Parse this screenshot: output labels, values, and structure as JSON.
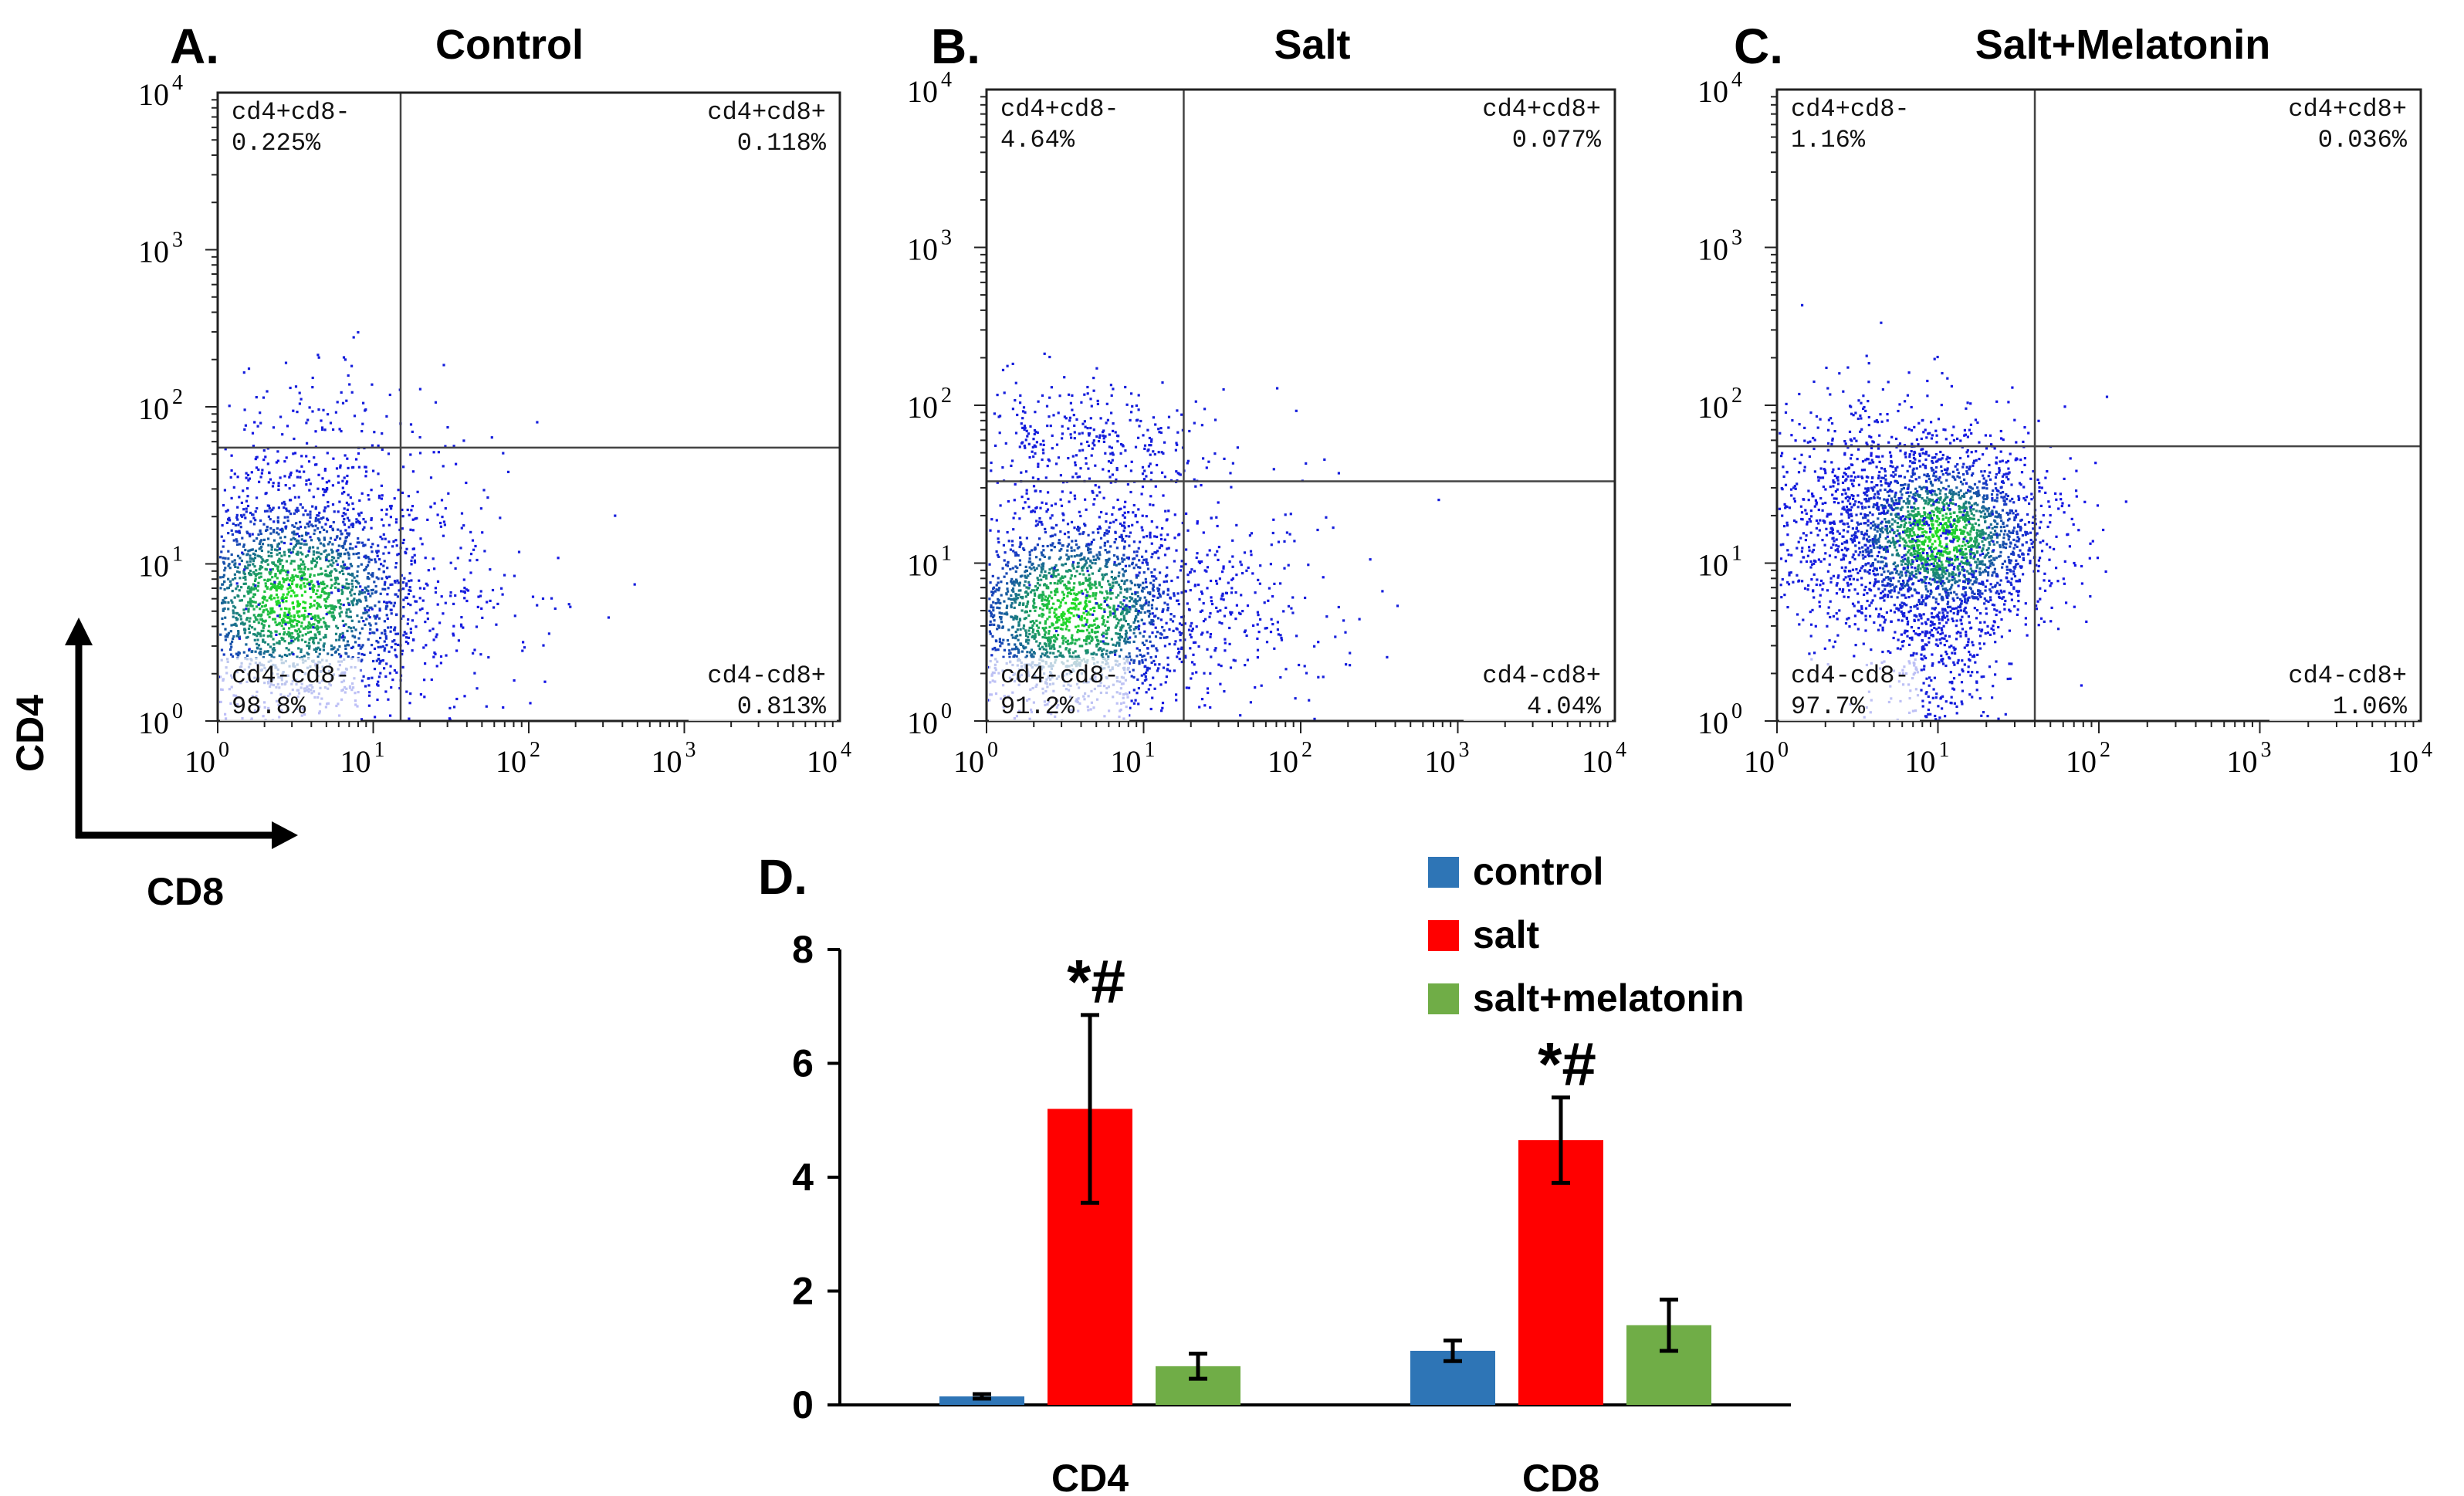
{
  "figure": {
    "axis_label_y": "CD4",
    "axis_label_x": "CD8",
    "colors": {
      "dot_low": "#1414e6",
      "dot_high": "#20e020",
      "bar_control": "#2e75b6",
      "bar_salt": "#ff0000",
      "bar_salt_melatonin": "#70ad47"
    }
  },
  "chart_data": [
    {
      "type": "scatter",
      "panel": "A.",
      "title": "Control",
      "xscale": "log",
      "yscale": "log",
      "xlim": [
        1,
        10000
      ],
      "ylim": [
        1,
        10000
      ],
      "x_ticks": [
        {
          "base": "10",
          "exp": "0"
        },
        {
          "base": "10",
          "exp": "1"
        },
        {
          "base": "10",
          "exp": "2"
        },
        {
          "base": "10",
          "exp": "3"
        },
        {
          "base": "10",
          "exp": "4"
        }
      ],
      "y_ticks": [
        {
          "base": "10",
          "exp": "0"
        },
        {
          "base": "10",
          "exp": "1"
        },
        {
          "base": "10",
          "exp": "2"
        },
        {
          "base": "10",
          "exp": "3"
        },
        {
          "base": "10",
          "exp": "4"
        }
      ],
      "gate": {
        "x": 15,
        "y": 55
      },
      "quadrants": [
        {
          "name": "cd4+cd8-",
          "pct": "0.225%",
          "pos": "top-left"
        },
        {
          "name": "cd4+cd8+",
          "pct": "0.118%",
          "pos": "top-right"
        },
        {
          "name": "cd4-cd8-",
          "pct": "98.8%",
          "pos": "bottom-left"
        },
        {
          "name": "cd4-cd8+",
          "pct": "0.813%",
          "pos": "bottom-right"
        }
      ],
      "populations": [
        {
          "cx": 3,
          "cy": 6,
          "sx": 0.45,
          "sy": 0.38,
          "n": 2400
        },
        {
          "cx": 15,
          "cy": 6,
          "sx": 0.55,
          "sy": 0.3,
          "n": 180
        },
        {
          "cx": 4,
          "cy": 40,
          "sx": 0.5,
          "sy": 0.35,
          "n": 260
        }
      ]
    },
    {
      "type": "scatter",
      "panel": "B.",
      "title": "Salt",
      "xscale": "log",
      "yscale": "log",
      "xlim": [
        1,
        10000
      ],
      "ylim": [
        1,
        10000
      ],
      "x_ticks": [
        {
          "base": "10",
          "exp": "0"
        },
        {
          "base": "10",
          "exp": "1"
        },
        {
          "base": "10",
          "exp": "2"
        },
        {
          "base": "10",
          "exp": "3"
        },
        {
          "base": "10",
          "exp": "4"
        }
      ],
      "y_ticks": [
        {
          "base": "10",
          "exp": "0"
        },
        {
          "base": "10",
          "exp": "1"
        },
        {
          "base": "10",
          "exp": "2"
        },
        {
          "base": "10",
          "exp": "3"
        },
        {
          "base": "10",
          "exp": "4"
        }
      ],
      "gate": {
        "x": 18,
        "y": 33
      },
      "quadrants": [
        {
          "name": "cd4+cd8-",
          "pct": "4.64%",
          "pos": "top-left"
        },
        {
          "name": "cd4+cd8+",
          "pct": "0.077%",
          "pos": "top-right"
        },
        {
          "name": "cd4-cd8-",
          "pct": "91.2%",
          "pos": "bottom-left"
        },
        {
          "name": "cd4-cd8+",
          "pct": "4.04%",
          "pos": "bottom-right"
        }
      ],
      "populations": [
        {
          "cx": 3.5,
          "cy": 5,
          "sx": 0.42,
          "sy": 0.35,
          "n": 2200
        },
        {
          "cx": 4,
          "cy": 60,
          "sx": 0.4,
          "sy": 0.2,
          "n": 320
        },
        {
          "cx": 25,
          "cy": 6,
          "sx": 0.5,
          "sy": 0.35,
          "n": 280
        }
      ]
    },
    {
      "type": "scatter",
      "panel": "C.",
      "title": "Salt+Melatonin",
      "xscale": "log",
      "yscale": "log",
      "xlim": [
        1,
        10000
      ],
      "ylim": [
        1,
        10000
      ],
      "x_ticks": [
        {
          "base": "10",
          "exp": "0"
        },
        {
          "base": "10",
          "exp": "1"
        },
        {
          "base": "10",
          "exp": "2"
        },
        {
          "base": "10",
          "exp": "3"
        },
        {
          "base": "10",
          "exp": "4"
        }
      ],
      "y_ticks": [
        {
          "base": "10",
          "exp": "0"
        },
        {
          "base": "10",
          "exp": "1"
        },
        {
          "base": "10",
          "exp": "2"
        },
        {
          "base": "10",
          "exp": "3"
        },
        {
          "base": "10",
          "exp": "4"
        }
      ],
      "gate": {
        "x": 40,
        "y": 55
      },
      "quadrants": [
        {
          "name": "cd4+cd8-",
          "pct": "1.16%",
          "pos": "top-left"
        },
        {
          "name": "cd4+cd8+",
          "pct": "0.036%",
          "pos": "top-right"
        },
        {
          "name": "cd4-cd8-",
          "pct": "97.7%",
          "pos": "bottom-left"
        },
        {
          "name": "cd4-cd8+",
          "pct": "1.06%",
          "pos": "bottom-right"
        }
      ],
      "populations": [
        {
          "cx": 10,
          "cy": 15,
          "sx": 0.35,
          "sy": 0.3,
          "n": 2200
        },
        {
          "cx": 3,
          "cy": 20,
          "sx": 0.45,
          "sy": 0.4,
          "n": 800
        },
        {
          "cx": 10,
          "cy": 3,
          "sx": 0.2,
          "sy": 0.35,
          "n": 400
        }
      ]
    },
    {
      "type": "bar",
      "panel": "D.",
      "categories": [
        "CD4",
        "CD8"
      ],
      "ylim": [
        0,
        8
      ],
      "yticks": [
        "0",
        "2",
        "4",
        "6",
        "8"
      ],
      "series": [
        {
          "name": "control",
          "values": [
            0.15,
            0.95
          ],
          "errors": [
            0.04,
            0.18
          ]
        },
        {
          "name": "salt",
          "values": [
            5.2,
            4.65
          ],
          "errors": [
            1.65,
            0.75
          ]
        },
        {
          "name": "salt+melatonin",
          "values": [
            0.68,
            1.4
          ],
          "errors": [
            0.22,
            0.45
          ]
        }
      ],
      "significance": [
        "*#",
        "*#"
      ],
      "legend": "top-right"
    }
  ]
}
